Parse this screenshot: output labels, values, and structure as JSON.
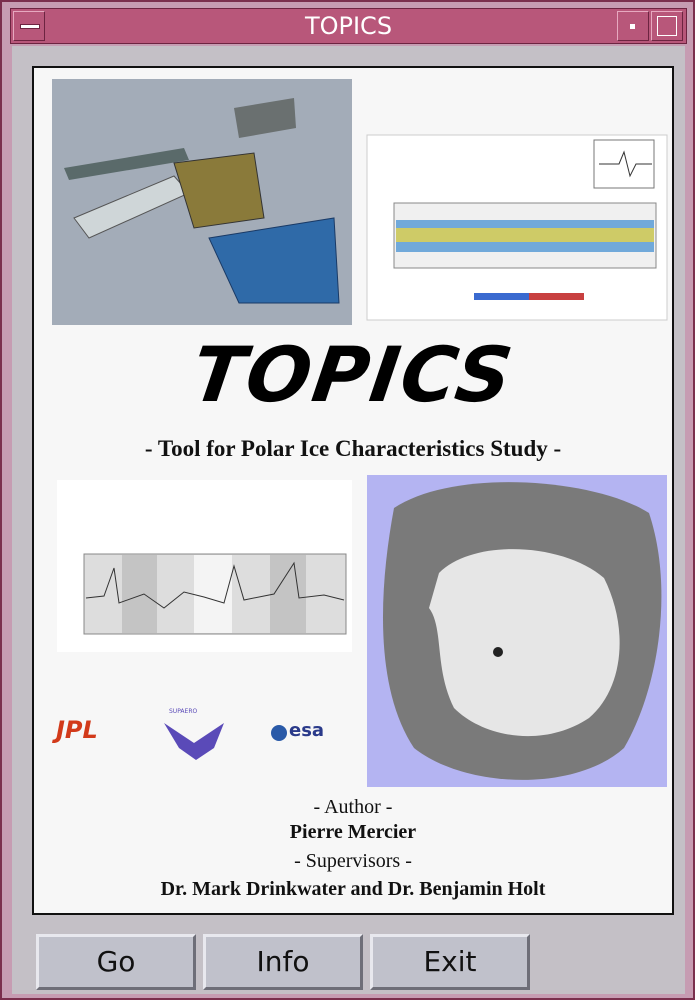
{
  "window": {
    "title": "TOPICS"
  },
  "logo": "TOPICS",
  "subtitle": "- Tool for Polar Ice Characteristics Study -",
  "sponsors": [
    "JPL",
    "SUPAERO",
    "esa"
  ],
  "credits": {
    "author_heading": "- Author -",
    "author": "Pierre Mercier",
    "supervisors_heading": "- Supervisors -",
    "supervisors": "Dr. Mark Drinkwater and Dr. Benjamin Holt"
  },
  "buttons": [
    "Go",
    "Info",
    "Exit"
  ]
}
